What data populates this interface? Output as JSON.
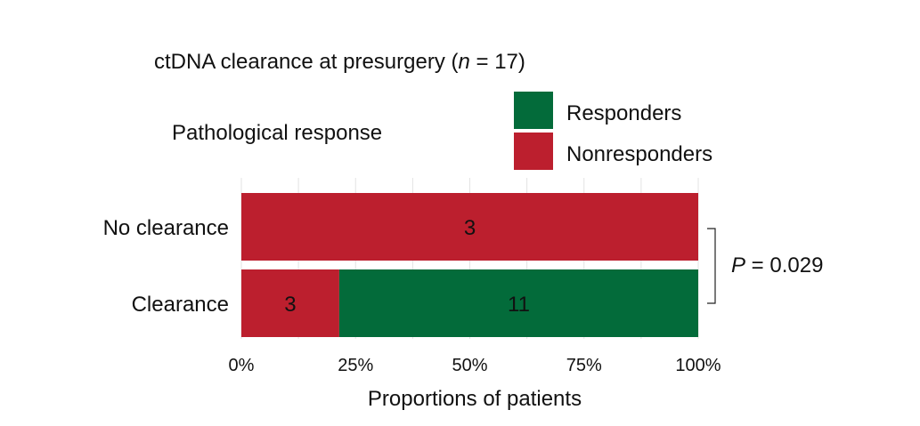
{
  "chart_data": {
    "type": "bar",
    "orientation": "horizontal",
    "stacked": true,
    "normalized": true,
    "title": "ctDNA clearance at presurgery (n = 17)",
    "title_parts": {
      "prefix": "ctDNA clearance at presurgery (",
      "italic": "n",
      "suffix": " = 17)"
    },
    "legend": {
      "title": "Pathological response",
      "position": "top-right",
      "entries": [
        {
          "label": "Responders",
          "color": "#036b3a"
        },
        {
          "label": "Nonresponders",
          "color": "#bc1f2e"
        }
      ]
    },
    "categories": [
      "No clearance",
      "Clearance"
    ],
    "series": [
      {
        "name": "Nonresponders",
        "color": "#bc1f2e",
        "values": [
          3,
          3
        ]
      },
      {
        "name": "Responders",
        "color": "#036b3a",
        "values": [
          0,
          11
        ]
      }
    ],
    "xlabel": "Proportions of patients",
    "xlim": [
      0,
      100
    ],
    "xticks": [
      "0%",
      "25%",
      "50%",
      "75%",
      "100%"
    ],
    "grid": true,
    "annotation": {
      "italic": "P",
      "text": " = 0.029"
    }
  }
}
